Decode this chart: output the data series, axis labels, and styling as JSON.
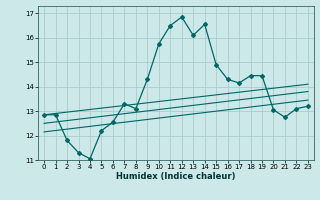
{
  "xlabel": "Humidex (Indice chaleur)",
  "ylabel": "",
  "bg_color": "#cce8e8",
  "grid_color": "#aacccc",
  "line_color": "#006666",
  "xlim": [
    -0.5,
    23.5
  ],
  "ylim": [
    11,
    17.3
  ],
  "xticks": [
    0,
    1,
    2,
    3,
    4,
    5,
    6,
    7,
    8,
    9,
    10,
    11,
    12,
    13,
    14,
    15,
    16,
    17,
    18,
    19,
    20,
    21,
    22,
    23
  ],
  "yticks": [
    11,
    12,
    13,
    14,
    15,
    16,
    17
  ],
  "main_curve_x": [
    0,
    1,
    2,
    3,
    4,
    5,
    6,
    7,
    8,
    9,
    10,
    11,
    12,
    13,
    14,
    15,
    16,
    17,
    18,
    19,
    20,
    21,
    22,
    23
  ],
  "main_curve_y": [
    12.85,
    12.85,
    11.8,
    11.3,
    11.05,
    12.2,
    12.55,
    13.3,
    13.1,
    14.3,
    15.75,
    16.5,
    16.85,
    16.1,
    16.55,
    14.9,
    14.3,
    14.15,
    14.45,
    14.45,
    13.05,
    12.75,
    13.1,
    13.2
  ],
  "line1_x": [
    0,
    23
  ],
  "line1_y": [
    12.85,
    14.1
  ],
  "line2_x": [
    0,
    23
  ],
  "line2_y": [
    12.5,
    13.8
  ],
  "line3_x": [
    0,
    23
  ],
  "line3_y": [
    12.15,
    13.45
  ]
}
